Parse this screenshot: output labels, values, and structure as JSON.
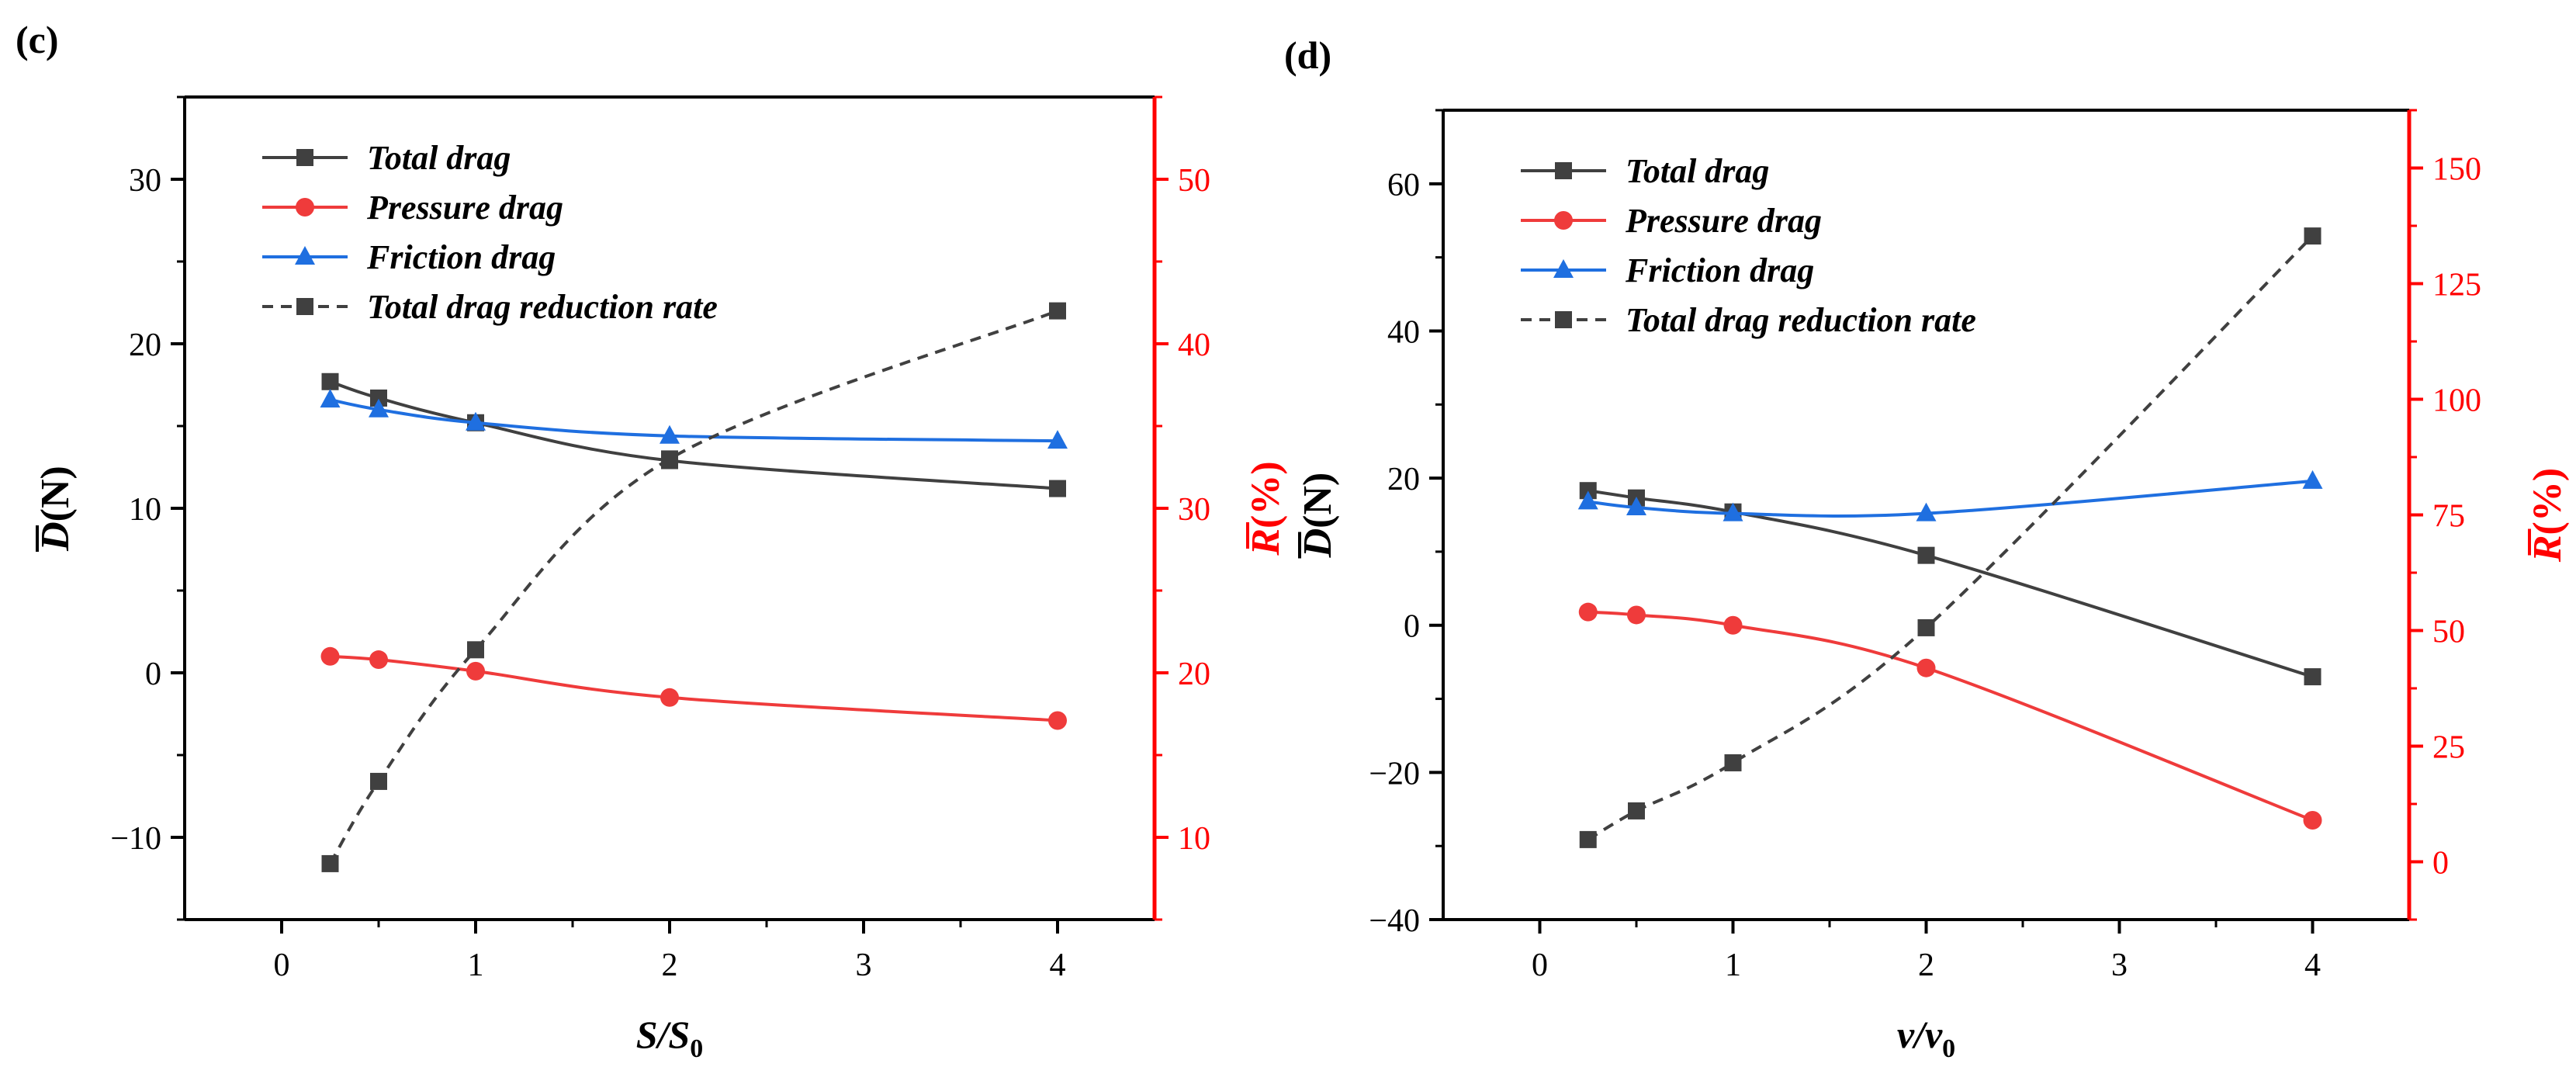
{
  "colors": {
    "total": "#404040",
    "pressure": "#ef3b3b",
    "friction": "#1f6fe0",
    "reduction": "#404040",
    "right_axis": "#ff0000",
    "axis": "#000000"
  },
  "chart_data": [
    {
      "type": "line",
      "panel_label": "(c)",
      "x": [
        0.25,
        0.5,
        1,
        2,
        4
      ],
      "xticks": [
        "0",
        "1",
        "2",
        "3",
        "4"
      ],
      "xlim": [
        -0.5,
        4.5
      ],
      "xlabel_main": "S/S",
      "xlabel_sub": "0",
      "ylabel_left_main": "D",
      "ylabel_left_unit": "(N)",
      "ylim_left": [
        -15,
        35
      ],
      "yticks_left": [
        -10,
        0,
        10,
        20,
        30
      ],
      "ylabel_right_main": "R",
      "ylabel_right_unit": "(%)",
      "ylim_right": [
        5,
        55
      ],
      "yticks_right": [
        10,
        20,
        30,
        40,
        50
      ],
      "series": [
        {
          "name": "Total drag",
          "axis": "left",
          "marker": "square",
          "dashed": false,
          "values": [
            17.7,
            16.7,
            15.2,
            12.9,
            11.2
          ]
        },
        {
          "name": "Pressure drag",
          "axis": "left",
          "marker": "circle",
          "dashed": false,
          "values": [
            1.0,
            0.8,
            0.1,
            -1.5,
            -2.9
          ]
        },
        {
          "name": "Friction drag",
          "axis": "left",
          "marker": "triangle",
          "dashed": false,
          "values": [
            16.6,
            16.0,
            15.2,
            14.4,
            14.1
          ]
        },
        {
          "name": "Total drag reduction rate",
          "axis": "right",
          "marker": "square",
          "dashed": true,
          "values": [
            8.4,
            13.4,
            21.4,
            33.0,
            42.0
          ]
        }
      ]
    },
    {
      "type": "line",
      "panel_label": "(d)",
      "x": [
        0.25,
        0.5,
        1,
        2,
        4
      ],
      "xticks": [
        "0",
        "1",
        "2",
        "3",
        "4"
      ],
      "xlim": [
        -0.5,
        4.5
      ],
      "xlabel_main": "v/v",
      "xlabel_sub": "0",
      "ylabel_left_main": "D",
      "ylabel_left_unit": "(N)",
      "ylim_left": [
        -40,
        70
      ],
      "yticks_left": [
        -40,
        -20,
        0,
        20,
        40,
        60
      ],
      "ylabel_right_main": "R",
      "ylabel_right_unit": "(%)",
      "ylim_right": [
        -12.5,
        162.5
      ],
      "yticks_right": [
        0,
        25,
        50,
        75,
        100,
        125,
        150
      ],
      "series": [
        {
          "name": "Total drag",
          "axis": "left",
          "marker": "square",
          "dashed": false,
          "values": [
            18.3,
            17.3,
            15.4,
            9.5,
            -7.0
          ]
        },
        {
          "name": "Pressure drag",
          "axis": "left",
          "marker": "circle",
          "dashed": false,
          "values": [
            1.8,
            1.4,
            0.0,
            -5.8,
            -26.5
          ]
        },
        {
          "name": "Friction drag",
          "axis": "left",
          "marker": "triangle",
          "dashed": false,
          "values": [
            16.8,
            16.0,
            15.2,
            15.2,
            19.6
          ]
        },
        {
          "name": "Total drag reduction rate",
          "axis": "right",
          "marker": "square",
          "dashed": true,
          "values": [
            4.8,
            11.0,
            21.4,
            50.6,
            135.3
          ]
        }
      ]
    }
  ]
}
